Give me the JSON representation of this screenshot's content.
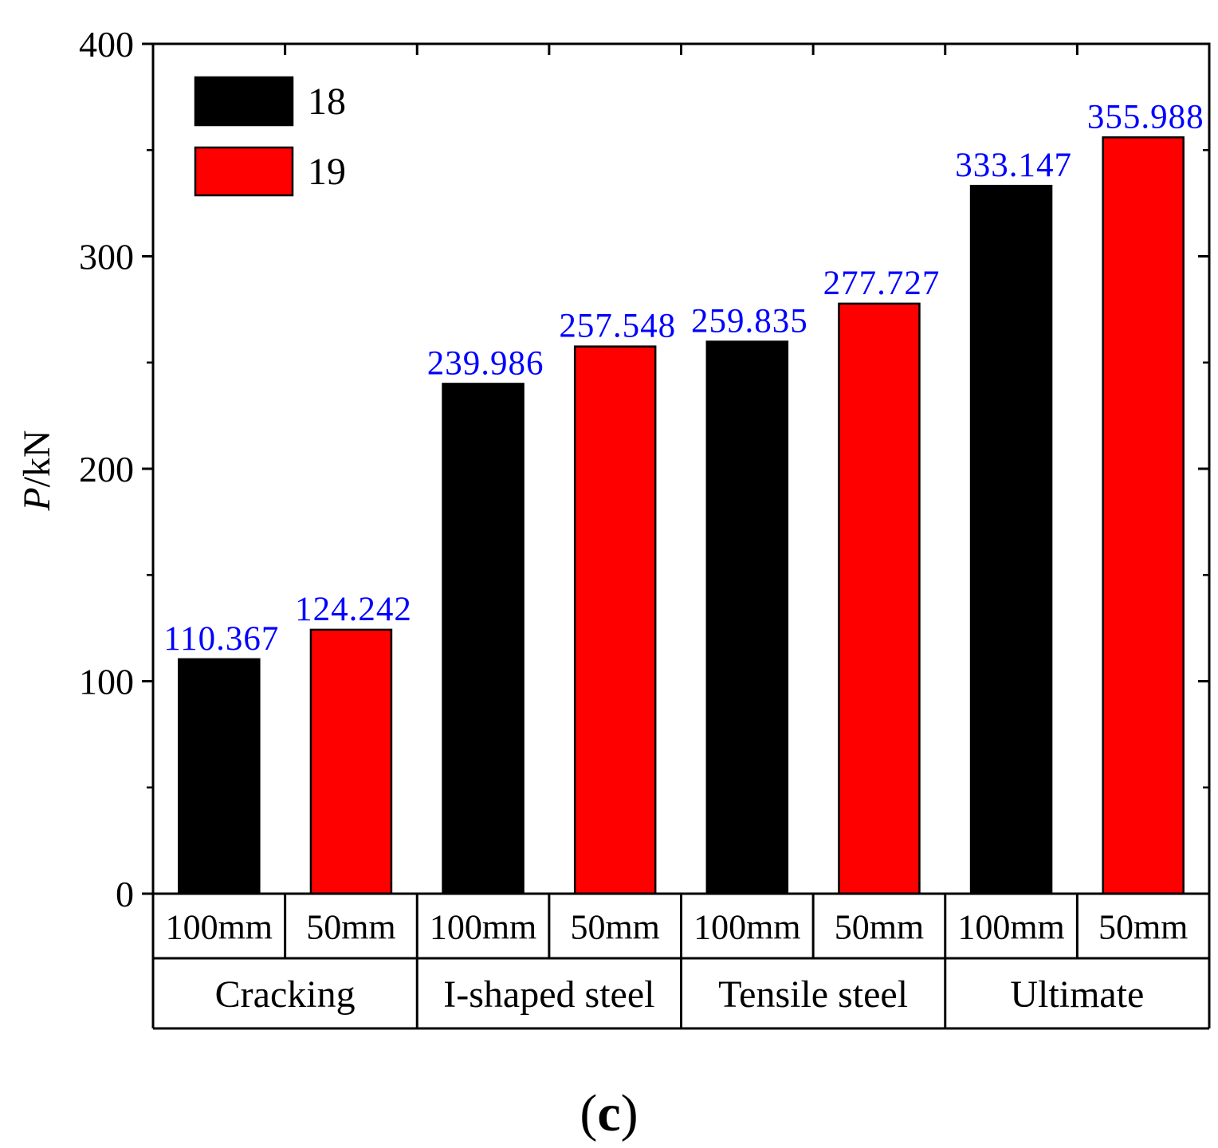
{
  "chart_data": {
    "type": "bar",
    "title": "",
    "panel_label": "(c)",
    "panel_letter": "c",
    "ylabel_italic": "P",
    "ylabel_unit": "/kN",
    "ylim": [
      0,
      400
    ],
    "yticks": [
      0,
      100,
      200,
      300,
      400
    ],
    "grid": false,
    "legend_position": "top-left",
    "groups": [
      "Cracking",
      "I-shaped steel",
      "Tensile steel",
      "Ultimate"
    ],
    "categories": [
      "100mm",
      "50mm",
      "100mm",
      "50mm",
      "100mm",
      "50mm",
      "100mm",
      "50mm"
    ],
    "series": [
      {
        "name": "18",
        "color": "#000000"
      },
      {
        "name": "19",
        "color": "#ff0000"
      }
    ],
    "bar_series_index": [
      0,
      1,
      0,
      1,
      0,
      1,
      0,
      1
    ],
    "values": [
      110.367,
      124.242,
      239.986,
      257.548,
      259.835,
      277.727,
      333.147,
      355.988
    ],
    "data_labels": [
      "110.367",
      "124.242",
      "239.986",
      "257.548",
      "259.835",
      "277.727",
      "333.147",
      "355.988"
    ],
    "data_label_color": "#0000ff"
  }
}
